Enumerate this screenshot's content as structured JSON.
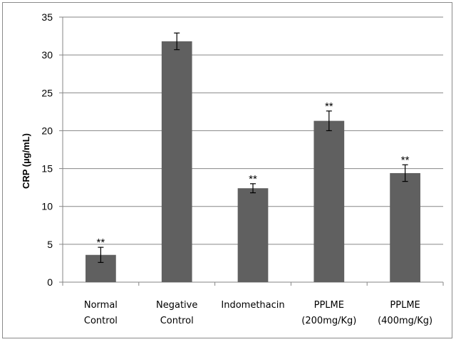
{
  "chart_data": {
    "type": "bar",
    "categories": [
      [
        "Normal",
        "Control"
      ],
      [
        "Negative",
        "Control"
      ],
      [
        "Indomethacin"
      ],
      [
        "PPLME",
        "(200mg/Kg)"
      ],
      [
        "PPLME",
        "(400mg/Kg)"
      ]
    ],
    "values": [
      3.6,
      31.8,
      12.4,
      21.3,
      14.4
    ],
    "errors": [
      1.0,
      1.1,
      0.6,
      1.3,
      1.1
    ],
    "significance": [
      "**",
      "",
      "**",
      "**",
      "**"
    ],
    "title": "",
    "xlabel": "",
    "ylabel": "CRP (µg/mL)",
    "ylim": [
      0,
      35
    ],
    "yticks": [
      0,
      5,
      10,
      15,
      20,
      25,
      30,
      35
    ],
    "grid": true,
    "legend": "none",
    "bar_color": "#606060",
    "grid_color": "#868686"
  }
}
